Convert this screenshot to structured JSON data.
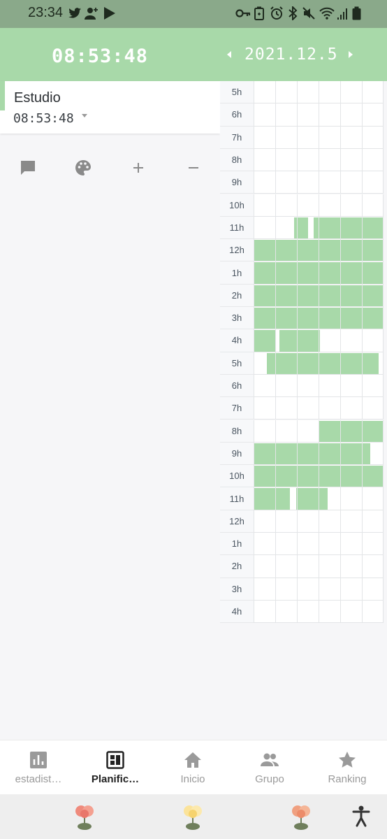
{
  "status_bar": {
    "time": "23:34"
  },
  "header": {
    "timer": "08:53:48",
    "date": "2021.12.5"
  },
  "subject": {
    "name": "Estudio",
    "time": "08:53:48"
  },
  "colors": {
    "accent": "#a8d9a9",
    "status_bar": "#8aa98a",
    "fill": "#a8d9a9"
  },
  "actions": [
    "comment-icon",
    "palette-icon",
    "plus-icon",
    "minus-icon"
  ],
  "planner": {
    "hours": [
      "5h",
      "6h",
      "7h",
      "8h",
      "9h",
      "10h",
      "11h",
      "12h",
      "1h",
      "2h",
      "3h",
      "4h",
      "5h",
      "6h",
      "7h",
      "8h",
      "9h",
      "10h",
      "11h",
      "12h",
      "1h",
      "2h",
      "3h",
      "4h"
    ],
    "studied_intervals": [
      [],
      [],
      [],
      [],
      [],
      [],
      [
        [
          0.31,
          0.42
        ],
        [
          0.46,
          1.0
        ]
      ],
      [
        [
          0,
          1.0
        ]
      ],
      [
        [
          0,
          1.0
        ]
      ],
      [
        [
          0,
          1.0
        ]
      ],
      [
        [
          0,
          1.0
        ]
      ],
      [
        [
          0,
          0.17
        ],
        [
          0.2,
          0.51
        ]
      ],
      [
        [
          0.1,
          0.96
        ]
      ],
      [],
      [],
      [
        [
          0.5,
          1.0
        ]
      ],
      [
        [
          0,
          0.9
        ]
      ],
      [
        [
          0,
          1.0
        ]
      ],
      [
        [
          0,
          0.28
        ],
        [
          0.33,
          0.57
        ]
      ],
      [],
      [],
      [],
      [],
      []
    ]
  },
  "nav": {
    "items": [
      {
        "label": "estadist…",
        "icon": "bar-chart-icon"
      },
      {
        "label": "Planific…",
        "icon": "planner-icon"
      },
      {
        "label": "Inicio",
        "icon": "home-icon"
      },
      {
        "label": "Grupo",
        "icon": "group-icon"
      },
      {
        "label": "Ranking",
        "icon": "star-icon"
      }
    ],
    "active_index": 1
  },
  "dock": {
    "apps": [
      "red-flower-icon",
      "yellow-flower-icon",
      "orange-flower-icon"
    ],
    "accessibility_icon": "accessibility-icon"
  }
}
